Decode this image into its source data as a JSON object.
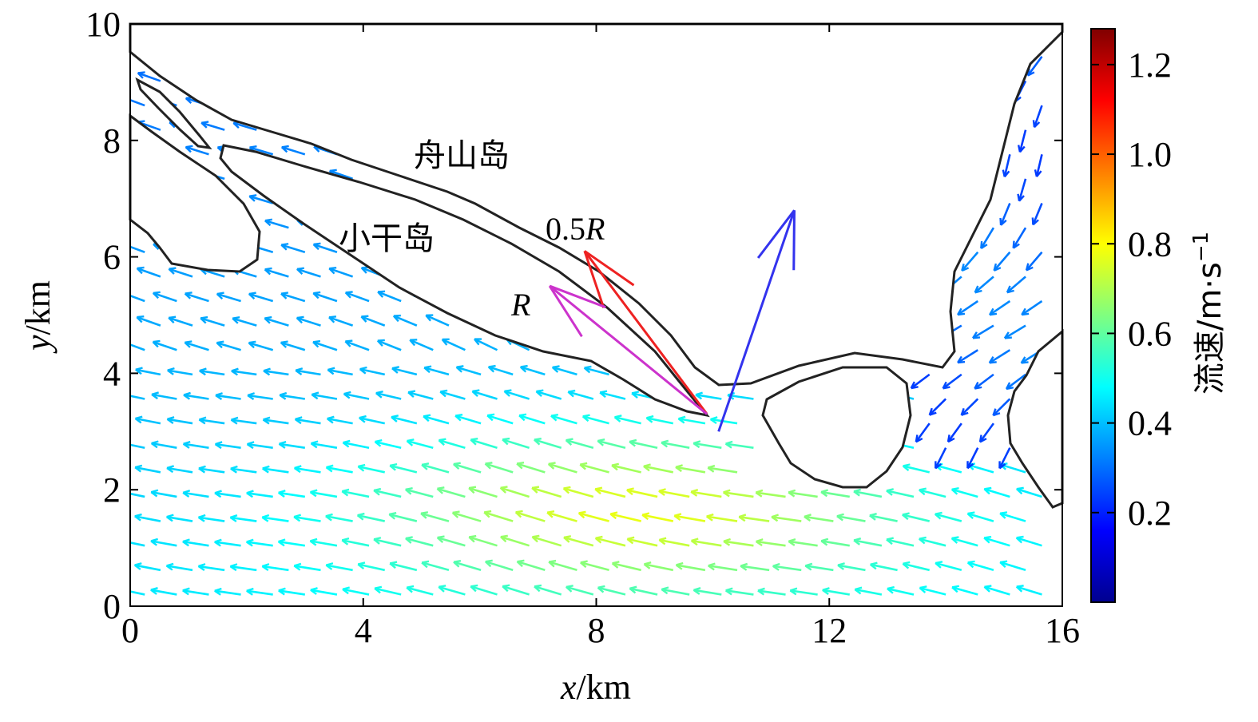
{
  "chart_data": {
    "type": "vector field",
    "xlabel_var": "x",
    "xlabel_unit": "/km",
    "ylabel_var": "y",
    "ylabel_unit": "/km",
    "xlim": [
      0,
      16
    ],
    "ylim": [
      0,
      10
    ],
    "xticks": [
      "0",
      "4",
      "8",
      "12",
      "16"
    ],
    "yticks": [
      "0",
      "2",
      "4",
      "6",
      "8",
      "10"
    ],
    "colorbar": {
      "label_text": "流速/m·s",
      "label_exp": "−1",
      "ticks": [
        "0.2",
        "0.4",
        "0.6",
        "0.8",
        "1.0",
        "1.2"
      ],
      "tick_values": [
        0.2,
        0.4,
        0.6,
        0.8,
        1.0,
        1.2
      ],
      "range": [
        0,
        1.28
      ],
      "colormap": "jet"
    },
    "islands": [
      {
        "name": "舟山岛",
        "label_pos": [
          5.8,
          7.7
        ]
      },
      {
        "name": "小干岛",
        "label_pos": [
          4.4,
          6.0
        ]
      }
    ],
    "annotations": [
      {
        "text_var": "R",
        "prefix": "",
        "x": 6.8,
        "y": 5.1
      },
      {
        "text_var": "R",
        "prefix": "0.5",
        "x": 7.3,
        "y": 6.3
      }
    ],
    "highlight_vectors": [
      {
        "name": "blue",
        "x0": 10.1,
        "y0": 3.0,
        "x1": 11.4,
        "y1": 6.8,
        "color": "#3333ee"
      },
      {
        "name": "red",
        "x0": 9.9,
        "y0": 3.3,
        "x1": 7.8,
        "y1": 6.1,
        "color": "#ee2222"
      },
      {
        "name": "magenta",
        "x0": 9.9,
        "y0": 3.3,
        "x1": 7.2,
        "y1": 5.5,
        "color": "#cc33cc"
      }
    ]
  }
}
